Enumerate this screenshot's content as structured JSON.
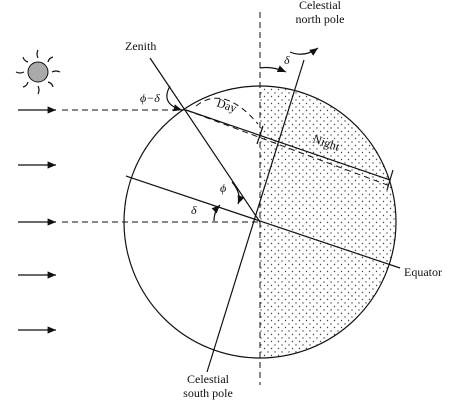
{
  "labels": {
    "north_pole_line1": "Celestial",
    "north_pole_line2": "north pole",
    "zenith": "Zenith",
    "delta_top": "δ",
    "phi_minus_delta": "ϕ−δ",
    "day": "Day",
    "night": "Night",
    "phi": "ϕ",
    "delta_left": "δ",
    "equator": "Equator",
    "south_pole_line1": "Celestial",
    "south_pole_line2": "south pole"
  }
}
